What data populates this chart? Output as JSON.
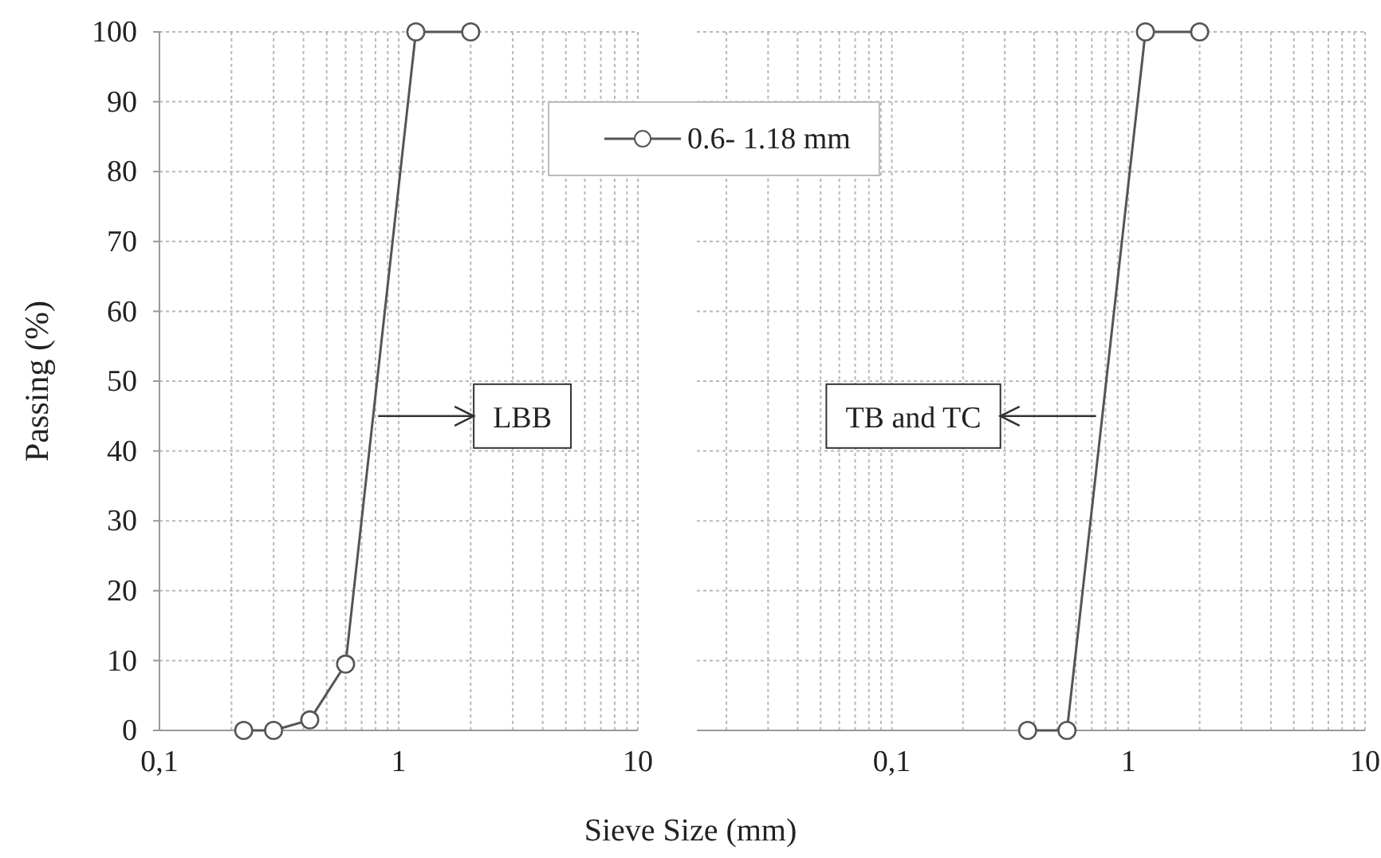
{
  "chart_data": [
    {
      "type": "line",
      "ylabel": "Passing (%)",
      "xlabel": "Sieve Size (mm)",
      "log": "x",
      "grid": true,
      "marker": "circle",
      "line_style": "solid",
      "legend": false,
      "xlim": [
        0.1,
        10
      ],
      "xticks": [
        {
          "value": 0.1,
          "label": "0,1"
        },
        {
          "value": 0.2,
          "label": null
        },
        {
          "value": 0.3,
          "label": null
        },
        {
          "value": 0.4,
          "label": null
        },
        {
          "value": 0.5,
          "label": null
        },
        {
          "value": 0.6,
          "label": null
        },
        {
          "value": 0.7,
          "label": null
        },
        {
          "value": 0.8,
          "label": null
        },
        {
          "value": 0.9,
          "label": null
        },
        {
          "value": 1,
          "label": "1"
        },
        {
          "value": 2,
          "label": null
        },
        {
          "value": 3,
          "label": null
        },
        {
          "value": 4,
          "label": null
        },
        {
          "value": 5,
          "label": null
        },
        {
          "value": 6,
          "label": null
        },
        {
          "value": 7,
          "label": null
        },
        {
          "value": 8,
          "label": null
        },
        {
          "value": 9,
          "label": null
        },
        {
          "value": 10,
          "label": "10"
        }
      ],
      "ylim": [
        0,
        100
      ],
      "yticks": [
        0,
        10,
        20,
        30,
        40,
        50,
        60,
        70,
        80,
        90,
        100
      ],
      "series": [
        {
          "color": "#555555",
          "x": [
            0.225,
            0.3,
            0.425,
            0.6,
            1.18,
            2.0
          ],
          "values": [
            0,
            0,
            1.5,
            9.5,
            100,
            100
          ]
        }
      ],
      "annotations": [
        {
          "text": "LBB",
          "x": 0.82,
          "y": 45
        }
      ]
    },
    {
      "type": "line",
      "log": "x",
      "grid": true,
      "marker": "circle",
      "line_style": "solid",
      "legend": "top left",
      "tick_labels": "x",
      "xlim": [
        0.015,
        10
      ],
      "xticks": [
        {
          "value": 0.02,
          "label": null
        },
        {
          "value": 0.03,
          "label": null
        },
        {
          "value": 0.04,
          "label": null
        },
        {
          "value": 0.05,
          "label": null
        },
        {
          "value": 0.06,
          "label": null
        },
        {
          "value": 0.07,
          "label": null
        },
        {
          "value": 0.08,
          "label": null
        },
        {
          "value": 0.09,
          "label": null
        },
        {
          "value": 0.1,
          "label": "0,1"
        },
        {
          "value": 0.2,
          "label": null
        },
        {
          "value": 0.3,
          "label": null
        },
        {
          "value": 0.4,
          "label": null
        },
        {
          "value": 0.5,
          "label": null
        },
        {
          "value": 0.6,
          "label": null
        },
        {
          "value": 0.7,
          "label": null
        },
        {
          "value": 0.8,
          "label": null
        },
        {
          "value": 0.9,
          "label": null
        },
        {
          "value": 1,
          "label": "1"
        },
        {
          "value": 2,
          "label": null
        },
        {
          "value": 3,
          "label": null
        },
        {
          "value": 4,
          "label": null
        },
        {
          "value": 5,
          "label": null
        },
        {
          "value": 6,
          "label": null
        },
        {
          "value": 7,
          "label": null
        },
        {
          "value": 8,
          "label": null
        },
        {
          "value": 9,
          "label": null
        },
        {
          "value": 10,
          "label": "10"
        }
      ],
      "ylim": [
        0,
        100
      ],
      "yticks": [
        0,
        10,
        20,
        30,
        40,
        50,
        60,
        70,
        80,
        90,
        100
      ],
      "series": [
        {
          "name": "0.6- 1.18 mm",
          "color": "#555555",
          "x": [
            0.375,
            0.55,
            1.18,
            2.0
          ],
          "values": [
            0,
            0,
            100,
            100
          ]
        }
      ],
      "annotations": [
        {
          "text": "TB and TC",
          "x": 0.73,
          "y": 45
        }
      ]
    }
  ]
}
